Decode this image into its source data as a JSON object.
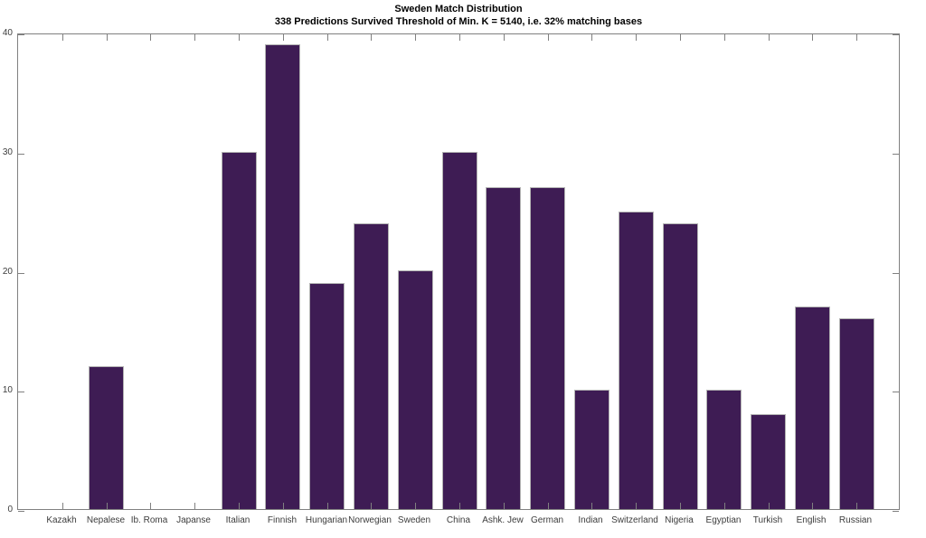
{
  "figure": {
    "background": "#ffffff"
  },
  "chart_data": {
    "type": "bar",
    "title": "Sweden Match Distribution",
    "subtitle": "338 Predictions Survived Threshold of Min. K = 5140, i.e. 32% matching bases",
    "categories": [
      "Kazakh",
      "Nepalese",
      "Ib. Roma",
      "Japanse",
      "Italian",
      "Finnish",
      "Hungarian",
      "Norwegian",
      "Sweden",
      "China",
      "Ashk. Jew",
      "German",
      "Indian",
      "Switzerland",
      "Nigeria",
      "Egyptian",
      "Turkish",
      "English",
      "Russian"
    ],
    "values": [
      0,
      12,
      0,
      0,
      30,
      39,
      19,
      24,
      20,
      30,
      27,
      27,
      10,
      25,
      24,
      10,
      8,
      17,
      16
    ],
    "xlabel": "",
    "ylabel": "",
    "ylim": [
      0,
      40
    ],
    "yticks": [
      0,
      10,
      20,
      30,
      40
    ],
    "grid": false,
    "legend": "none",
    "bar_width_fraction": 0.8,
    "colors": {
      "bar_fill": "#3e1c54",
      "bar_edge": "#b3b3b3",
      "axis": "#808080",
      "tick_label": "#3c3c3c",
      "title_text": "#000000",
      "background": "#ffffff"
    }
  }
}
